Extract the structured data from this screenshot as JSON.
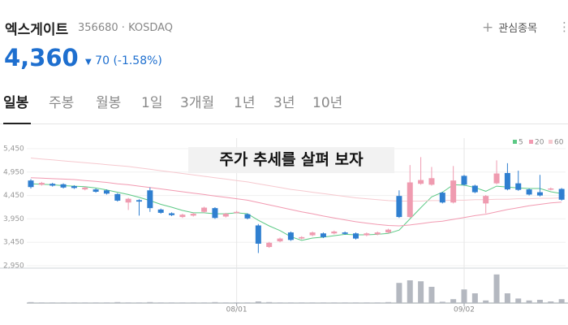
{
  "header": {
    "name": "엑스게이트",
    "code": "356680",
    "separator": "·",
    "market": "KOSDAQ",
    "watch_button": "관심종목",
    "price": "4,360",
    "change": "70",
    "change_rate": "(-1.58%)"
  },
  "tabs": [
    "일봉",
    "주봉",
    "월봉",
    "1일",
    "3개월",
    "1년",
    "3년",
    "10년"
  ],
  "chart_data": {
    "type": "candlestick",
    "title": "주가 추세를 살펴 보자",
    "categories": [
      null,
      null,
      null,
      null,
      null,
      null,
      null,
      null,
      null,
      null,
      null,
      null,
      null,
      null,
      null,
      null,
      null,
      null,
      null,
      "08/01",
      null,
      null,
      null,
      null,
      null,
      null,
      null,
      null,
      null,
      null,
      null,
      null,
      null,
      null,
      null,
      null,
      null,
      null,
      null,
      null,
      "09/02",
      null,
      null,
      null,
      null,
      null,
      null,
      null,
      null,
      null
    ],
    "open": [
      4770,
      4680,
      4700,
      4690,
      4650,
      4580,
      4580,
      4560,
      4480,
      4300,
      4350,
      4560,
      4150,
      4070,
      3990,
      4020,
      4100,
      4180,
      4000,
      4090,
      4050,
      3810,
      3350,
      3470,
      3660,
      3530,
      3600,
      3640,
      3640,
      3660,
      3640,
      3600,
      3620,
      3660,
      4440,
      3990,
      4700,
      4680,
      4510,
      4300,
      4870,
      4660,
      4280,
      4710,
      4930,
      4710,
      4580,
      4520,
      4580,
      4590
    ],
    "high": [
      4800,
      4740,
      4720,
      4710,
      4670,
      4640,
      4600,
      4580,
      4500,
      4400,
      4370,
      4620,
      4170,
      4090,
      4060,
      4080,
      4210,
      4200,
      4080,
      4120,
      4070,
      3840,
      3460,
      3550,
      3680,
      3580,
      3680,
      3660,
      3700,
      3680,
      3660,
      3660,
      3680,
      3740,
      4560,
      5100,
      5270,
      5060,
      4530,
      5080,
      4890,
      4680,
      4460,
      5200,
      5140,
      4980,
      4600,
      4890,
      4620,
      4610
    ],
    "low": [
      4600,
      4660,
      4640,
      4600,
      4590,
      4560,
      4510,
      4470,
      4320,
      4140,
      4020,
      4100,
      4060,
      4010,
      3970,
      4000,
      4080,
      3950,
      3980,
      4070,
      3940,
      3220,
      3330,
      3450,
      3480,
      3510,
      3580,
      3540,
      3620,
      3610,
      3510,
      3580,
      3600,
      3640,
      3970,
      3970,
      4680,
      4660,
      4280,
      4280,
      4660,
      4500,
      4070,
      4690,
      4560,
      4550,
      4450,
      4430,
      4560,
      4340
    ],
    "close": [
      4630,
      4720,
      4660,
      4620,
      4610,
      4620,
      4530,
      4490,
      4340,
      4380,
      4320,
      4180,
      4080,
      4030,
      4040,
      4060,
      4190,
      3970,
      4060,
      4100,
      3960,
      3420,
      3440,
      3530,
      3500,
      3560,
      3660,
      3560,
      3680,
      3630,
      3530,
      3640,
      3660,
      3720,
      3990,
      4730,
      4780,
      4820,
      4300,
      4770,
      4680,
      4520,
      4440,
      4920,
      4580,
      4570,
      4470,
      4450,
      4600,
      4360
    ],
    "up_color": "#ef9bb0",
    "down_color": "#2f7fd0",
    "series": [
      {
        "name": "5",
        "color": "#5cc985",
        "values": [
          4700,
          4690,
          4680,
          4660,
          4650,
          4640,
          4610,
          4570,
          4520,
          4470,
          4410,
          4340,
          4260,
          4200,
          4130,
          4080,
          4080,
          4060,
          4060,
          4080,
          4060,
          3920,
          3800,
          3700,
          3570,
          3490,
          3540,
          3560,
          3590,
          3620,
          3610,
          3610,
          3620,
          3640,
          3710,
          3950,
          4190,
          4420,
          4520,
          4680,
          4670,
          4620,
          4540,
          4650,
          4630,
          4610,
          4600,
          4600,
          4530,
          4490
        ]
      },
      {
        "name": "20",
        "color": "#f29ab1",
        "values": [
          4830,
          4820,
          4810,
          4800,
          4790,
          4770,
          4750,
          4730,
          4700,
          4680,
          4650,
          4620,
          4590,
          4560,
          4530,
          4500,
          4470,
          4440,
          4410,
          4380,
          4350,
          4300,
          4250,
          4200,
          4150,
          4100,
          4060,
          4010,
          3970,
          3930,
          3890,
          3860,
          3830,
          3810,
          3800,
          3820,
          3850,
          3880,
          3900,
          3940,
          3980,
          4020,
          4050,
          4100,
          4150,
          4190,
          4230,
          4260,
          4290,
          4310
        ]
      },
      {
        "name": "60",
        "color": "#f6c9cf",
        "values": [
          5250,
          5230,
          5210,
          5190,
          5170,
          5150,
          5130,
          5110,
          5090,
          5070,
          5040,
          5010,
          4980,
          4950,
          4920,
          4890,
          4860,
          4830,
          4800,
          4770,
          4740,
          4700,
          4660,
          4620,
          4580,
          4550,
          4520,
          4490,
          4460,
          4430,
          4400,
          4380,
          4360,
          4340,
          4330,
          4330,
          4330,
          4340,
          4340,
          4350,
          4350,
          4360,
          4360,
          4370,
          4370,
          4380,
          4380,
          4390,
          4390,
          4400
        ]
      }
    ],
    "volume": [
      3,
      2,
      2,
      2,
      2,
      2,
      2,
      2,
      3,
      2,
      2,
      3,
      2,
      2,
      2,
      2,
      2,
      3,
      2,
      2,
      2,
      5,
      3,
      2,
      2,
      2,
      2,
      2,
      2,
      2,
      2,
      2,
      2,
      3,
      62,
      70,
      67,
      50,
      4,
      12,
      42,
      30,
      8,
      88,
      30,
      14,
      8,
      10,
      5,
      12
    ],
    "volume_color": "#b4b8c0",
    "volume_ylim": [
      0,
      100
    ],
    "ylim": [
      2950,
      5450
    ],
    "yticks": [
      {
        "value": 2950,
        "label": "2,950"
      },
      {
        "value": 3450,
        "label": "3,450"
      },
      {
        "value": 3950,
        "label": "3,950"
      },
      {
        "value": 4450,
        "label": "4,450"
      },
      {
        "value": 4950,
        "label": "4,950"
      },
      {
        "value": 5450,
        "label": "5,450"
      }
    ],
    "grid": true
  }
}
